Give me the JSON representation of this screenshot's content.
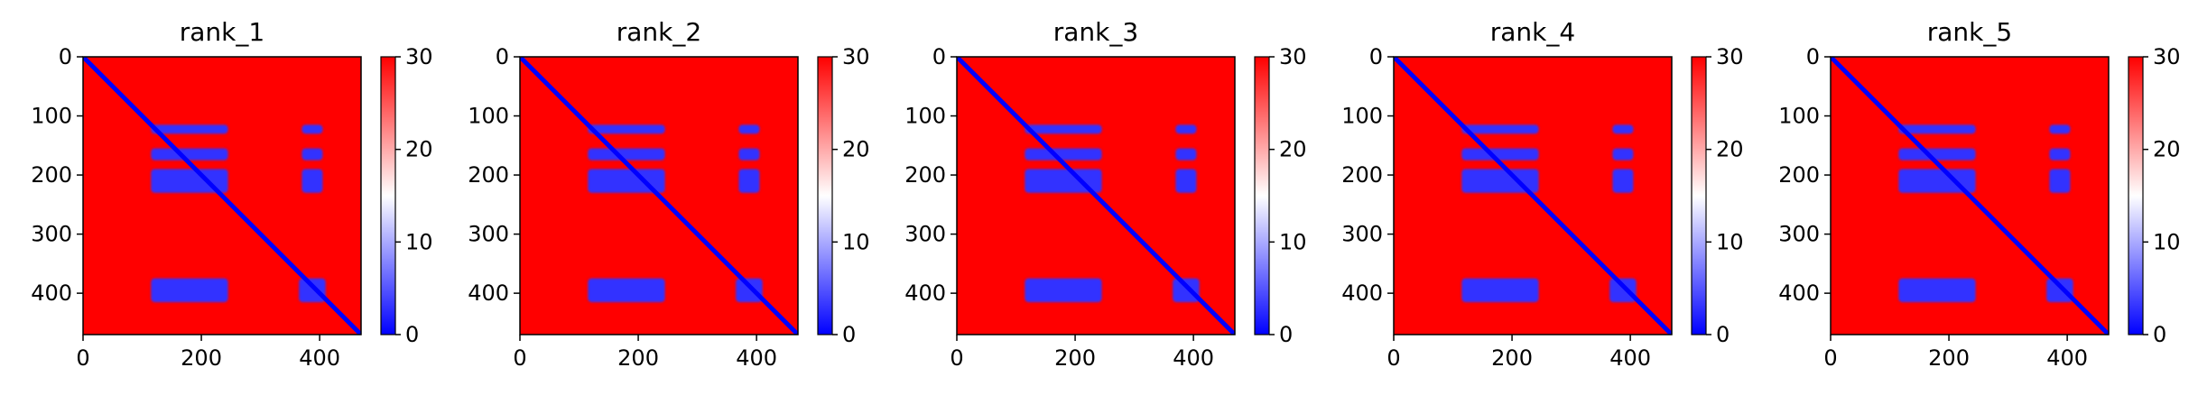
{
  "chart_data": {
    "type": "heatmap",
    "panels": [
      {
        "title": "rank_1"
      },
      {
        "title": "rank_2"
      },
      {
        "title": "rank_3"
      },
      {
        "title": "rank_4"
      },
      {
        "title": "rank_5"
      }
    ],
    "matrix_size": 470,
    "x_ticks": [
      0,
      200,
      400
    ],
    "y_ticks": [
      0,
      100,
      200,
      300,
      400
    ],
    "colorbar": {
      "ticks": [
        0,
        10,
        20,
        30
      ],
      "range": [
        0,
        30
      ],
      "colormap": "bwr",
      "low_color": "#0000ff",
      "mid_color": "#ffffff",
      "high_color": "#ff0000"
    },
    "structure": {
      "diagonal_value": 0,
      "background_value": 30,
      "blocks": [
        {
          "x_range": [
            115,
            245
          ],
          "y_range": [
            115,
            130
          ],
          "value": 3
        },
        {
          "x_range": [
            115,
            245
          ],
          "y_range": [
            155,
            175
          ],
          "value": 3
        },
        {
          "x_range": [
            115,
            245
          ],
          "y_range": [
            190,
            230
          ],
          "value": 3
        },
        {
          "x_range": [
            370,
            405
          ],
          "y_range": [
            115,
            130
          ],
          "value": 3
        },
        {
          "x_range": [
            370,
            405
          ],
          "y_range": [
            155,
            175
          ],
          "value": 3
        },
        {
          "x_range": [
            370,
            405
          ],
          "y_range": [
            190,
            230
          ],
          "value": 3
        },
        {
          "x_range": [
            115,
            245
          ],
          "y_range": [
            375,
            415
          ],
          "value": 3
        },
        {
          "x_range": [
            365,
            410
          ],
          "y_range": [
            375,
            415
          ],
          "value": 3
        }
      ]
    }
  }
}
